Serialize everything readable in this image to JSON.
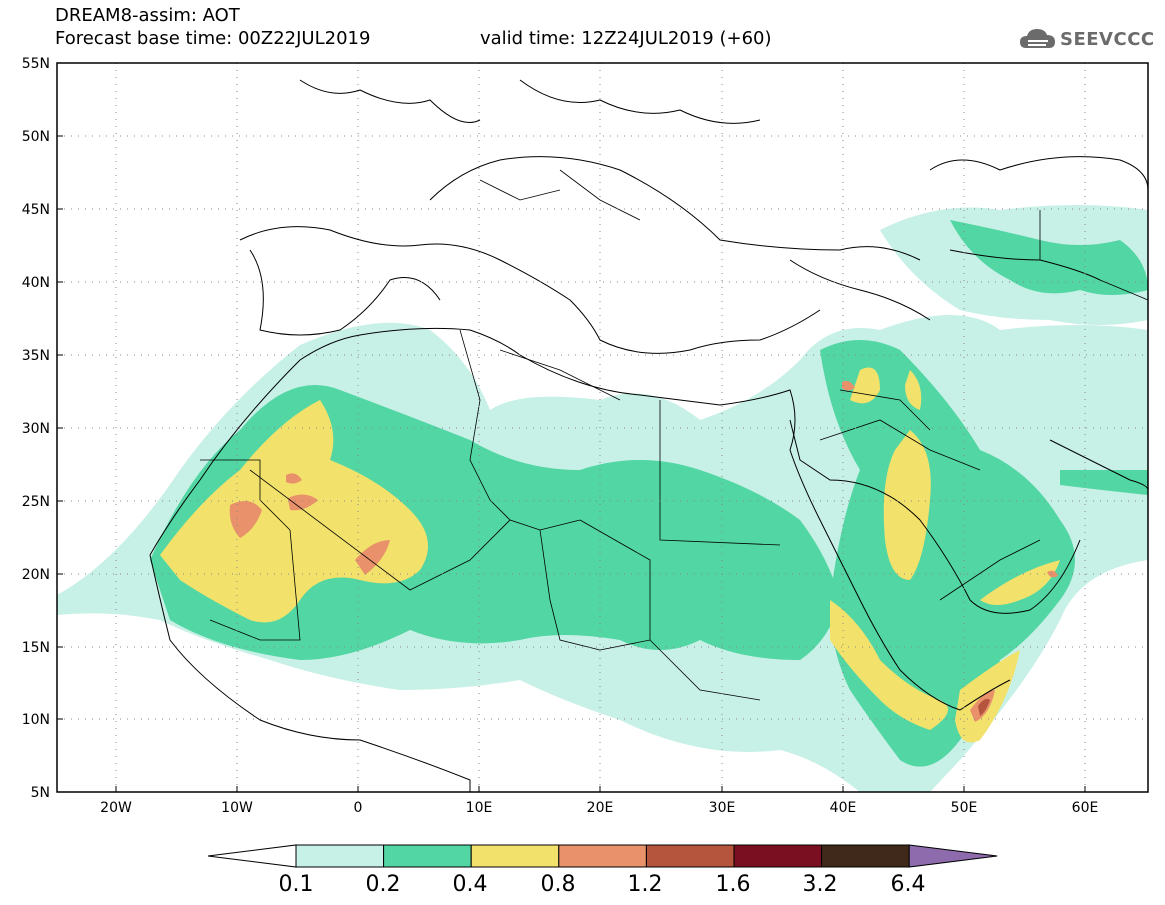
{
  "header": {
    "title": "DREAM8-assim: AOT",
    "base_time": "Forecast base time: 00Z22JUL2019",
    "valid_time": "valid time: 12Z24JUL2019 (+60)"
  },
  "logo": {
    "text": "SEEVCCC",
    "icon": "cloud-icon",
    "color": "#6b6b6b"
  },
  "map": {
    "lat_labels": [
      "55N",
      "50N",
      "45N",
      "40N",
      "35N",
      "30N",
      "25N",
      "20N",
      "15N",
      "10N",
      "5N"
    ],
    "lon_labels": [
      "20W",
      "10W",
      "0",
      "10E",
      "20E",
      "30E",
      "40E",
      "50E",
      "60E"
    ],
    "grid": "dotted"
  },
  "colorbar": {
    "labels": [
      "0.1",
      "0.2",
      "0.4",
      "0.8",
      "1.2",
      "1.6",
      "3.2",
      "6.4"
    ],
    "colors": [
      "#c7f0e6",
      "#52d6a4",
      "#f2e26b",
      "#e9916b",
      "#b5553e",
      "#7a0f22",
      "#40291a",
      "#8d6bad"
    ],
    "low_extension_color": "#ffffff"
  }
}
